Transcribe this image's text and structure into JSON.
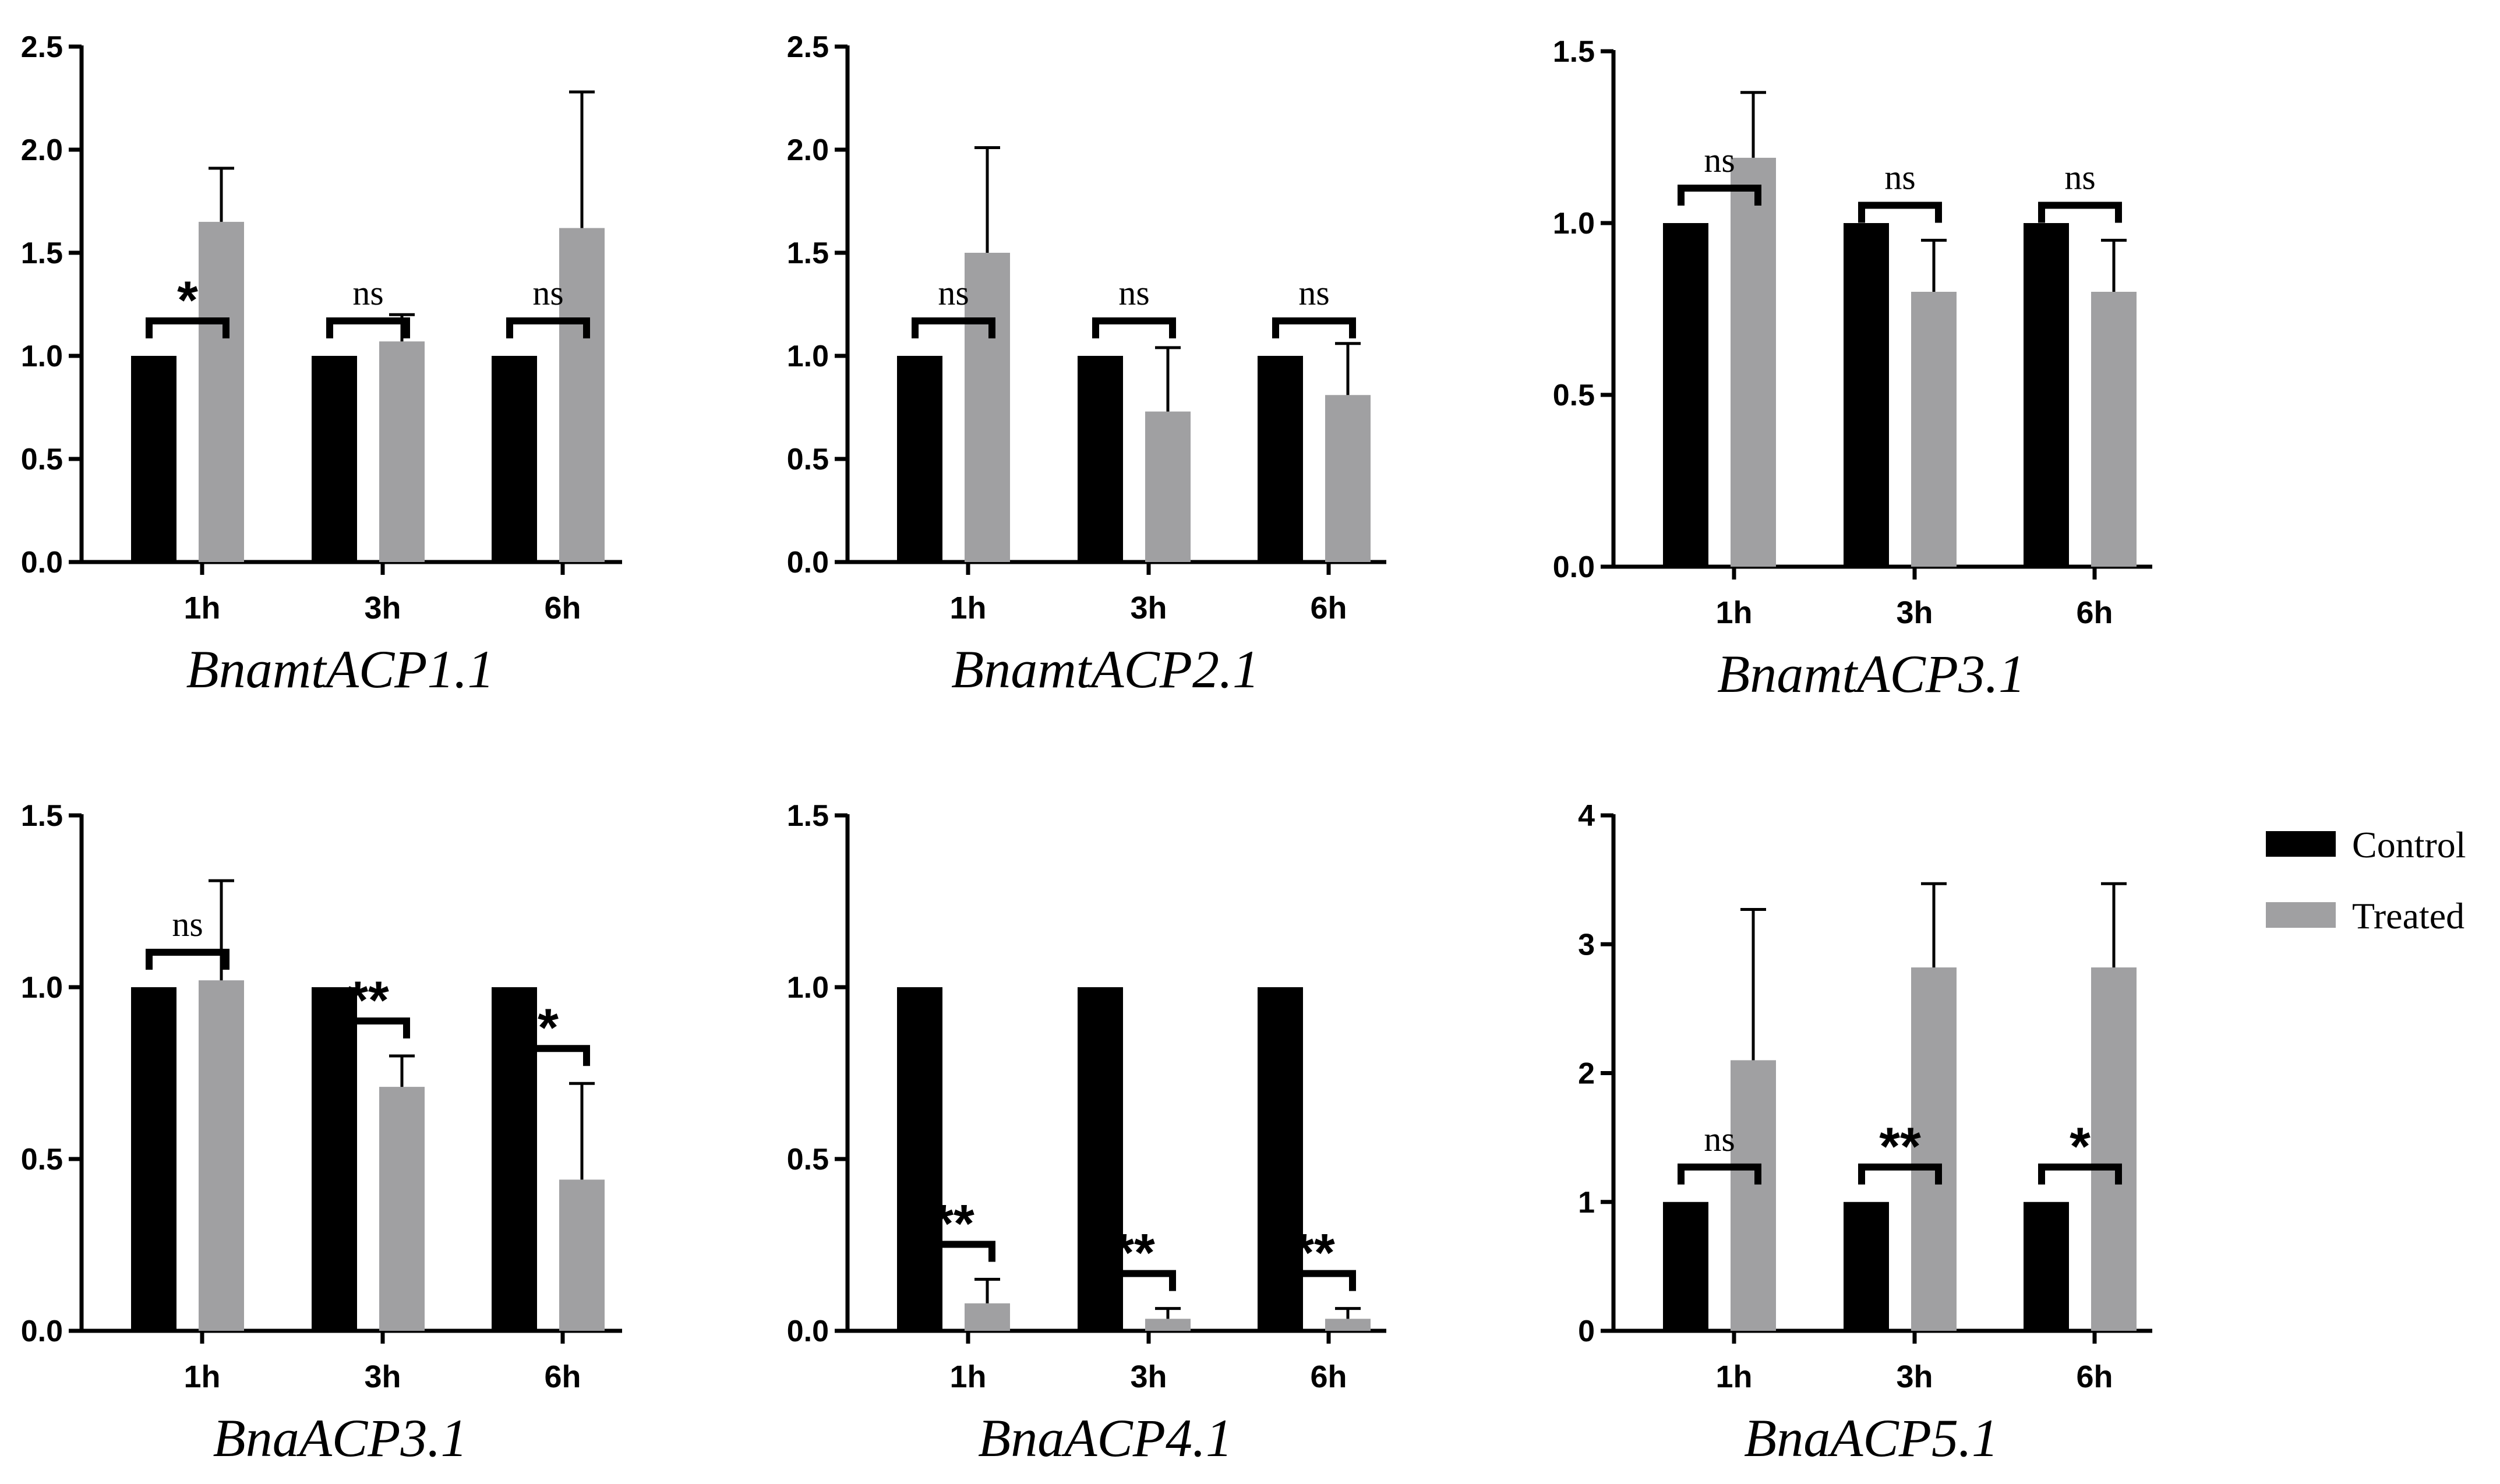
{
  "colors": {
    "control": "#000000",
    "treated": "#a0a0a2"
  },
  "legend": {
    "position": "right",
    "entries": [
      {
        "name": "Control",
        "color": "#000000"
      },
      {
        "name": "Treated",
        "color": "#a0a0a2"
      }
    ]
  },
  "chart_data": [
    {
      "type": "bar",
      "title": "BnamtACP1.1",
      "categories": [
        "1h",
        "3h",
        "6h"
      ],
      "ylim": [
        0,
        2.5
      ],
      "yticks": [
        "0.0",
        "0.5",
        "1.0",
        "1.5",
        "2.0",
        "2.5"
      ],
      "series": [
        {
          "name": "Control",
          "values": [
            1.0,
            1.0,
            1.0
          ]
        },
        {
          "name": "Treated",
          "values": [
            1.65,
            1.07,
            1.62
          ],
          "errors": [
            0.26,
            0.13,
            0.66
          ]
        }
      ],
      "significance": [
        "*",
        "ns",
        "ns"
      ]
    },
    {
      "type": "bar",
      "title": "BnamtACP2.1",
      "categories": [
        "1h",
        "3h",
        "6h"
      ],
      "ylim": [
        0,
        2.5
      ],
      "yticks": [
        "0.0",
        "0.5",
        "1.0",
        "1.5",
        "2.0",
        "2.5"
      ],
      "series": [
        {
          "name": "Control",
          "values": [
            1.0,
            1.0,
            1.0
          ]
        },
        {
          "name": "Treated",
          "values": [
            1.5,
            0.73,
            0.81
          ],
          "errors": [
            0.51,
            0.31,
            0.25
          ]
        }
      ],
      "significance": [
        "ns",
        "ns",
        "ns"
      ]
    },
    {
      "type": "bar",
      "title": "BnamtACP3.1",
      "categories": [
        "1h",
        "3h",
        "6h"
      ],
      "ylim": [
        0,
        1.5
      ],
      "yticks": [
        "0.0",
        "0.5",
        "1.0",
        "1.5"
      ],
      "series": [
        {
          "name": "Control",
          "values": [
            1.0,
            1.0,
            1.0
          ]
        },
        {
          "name": "Treated",
          "values": [
            1.19,
            0.8,
            0.8
          ],
          "errors": [
            0.19,
            0.15,
            0.15
          ]
        }
      ],
      "significance": [
        "ns",
        "ns",
        "ns"
      ]
    },
    {
      "type": "bar",
      "title": "BnaACP3.1",
      "categories": [
        "1h",
        "3h",
        "6h"
      ],
      "ylim": [
        0,
        1.5
      ],
      "yticks": [
        "0.0",
        "0.5",
        "1.0",
        "1.5"
      ],
      "series": [
        {
          "name": "Control",
          "values": [
            1.0,
            1.0,
            1.0
          ]
        },
        {
          "name": "Treated",
          "values": [
            1.02,
            0.71,
            0.44
          ],
          "errors": [
            0.29,
            0.09,
            0.28
          ]
        }
      ],
      "significance": [
        "ns",
        "**",
        "*"
      ]
    },
    {
      "type": "bar",
      "title": "BnaACP4.1",
      "categories": [
        "1h",
        "3h",
        "6h"
      ],
      "ylim": [
        0,
        1.5
      ],
      "yticks": [
        "0.0",
        "0.5",
        "1.0",
        "1.5"
      ],
      "series": [
        {
          "name": "Control",
          "values": [
            1.0,
            1.0,
            1.0
          ]
        },
        {
          "name": "Treated",
          "values": [
            0.08,
            0.035,
            0.035
          ],
          "errors": [
            0.07,
            0.03,
            0.03
          ]
        }
      ],
      "significance": [
        "**",
        "**",
        "**"
      ]
    },
    {
      "type": "bar",
      "title": "BnaACP5.1",
      "categories": [
        "1h",
        "3h",
        "6h"
      ],
      "ylim": [
        0,
        4
      ],
      "yticks": [
        "0",
        "1",
        "2",
        "3",
        "4"
      ],
      "series": [
        {
          "name": "Control",
          "values": [
            1.0,
            1.0,
            1.0
          ]
        },
        {
          "name": "Treated",
          "values": [
            2.1,
            2.82,
            2.82
          ],
          "errors": [
            1.17,
            0.65,
            0.65
          ]
        }
      ],
      "significance": [
        "ns",
        "**",
        "*"
      ]
    }
  ]
}
